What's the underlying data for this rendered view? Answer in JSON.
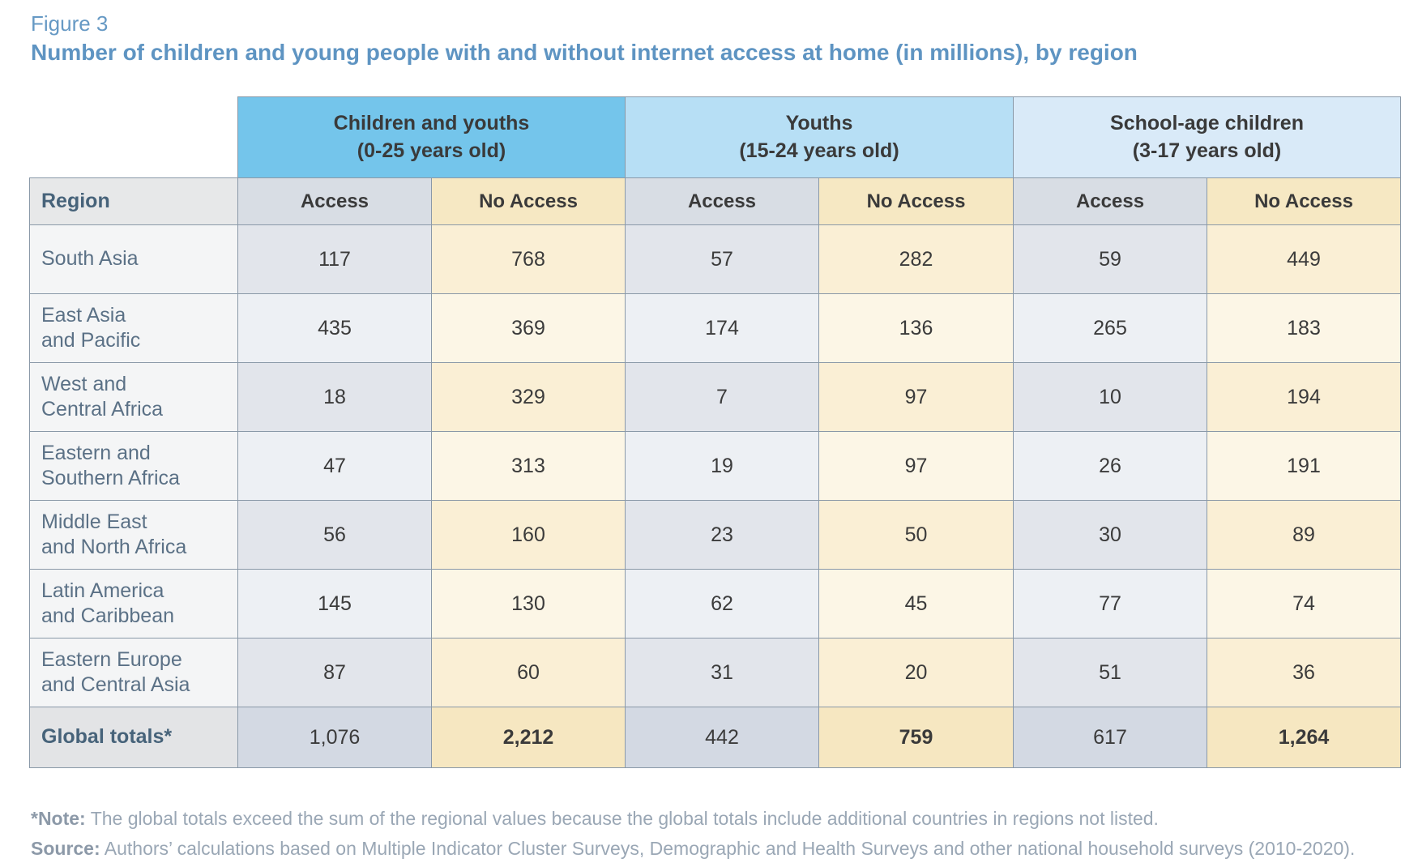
{
  "figure": {
    "label": "Figure 3",
    "title": "Number of children and young people with and without internet access at home (in millions), by region"
  },
  "colors": {
    "title_blue": "#5E94C2",
    "group_children_youths_bg": "#74C5EB",
    "group_youths_bg": "#B7DFF5",
    "group_school_age_bg": "#D9EAF8",
    "access_header_bg": "#D8DDE4",
    "no_access_header_bg": "#F6E8C3",
    "region_header_bg": "#E7E8E9",
    "access_cell_odd_bg": "#E2E5EB",
    "access_cell_even_bg": "#EDF0F4",
    "no_access_cell_odd_bg": "#FAEFD5",
    "no_access_cell_even_bg": "#FCF6E6",
    "totals_access_bg": "#D3D9E3",
    "totals_no_access_bg": "#F6E7C1",
    "region_text": "#5B7186",
    "footnote_text": "#9AA7B5",
    "grid_border": "#8A99A8"
  },
  "table": {
    "group_headers": [
      {
        "line1": "Children and youths",
        "line2": "(0-25 years old)"
      },
      {
        "line1": "Youths",
        "line2": "(15-24 years old)"
      },
      {
        "line1": "School-age children",
        "line2": "(3-17 years old)"
      }
    ],
    "region_header": "Region",
    "col_access": "Access",
    "col_no_access": "No Access",
    "rows": [
      {
        "region_lines": [
          "South Asia"
        ],
        "values": [
          "117",
          "768",
          "57",
          "282",
          "59",
          "449"
        ]
      },
      {
        "region_lines": [
          "East Asia",
          "and Pacific"
        ],
        "values": [
          "435",
          "369",
          "174",
          "136",
          "265",
          "183"
        ]
      },
      {
        "region_lines": [
          "West and",
          "Central Africa"
        ],
        "values": [
          "18",
          "329",
          "7",
          "97",
          "10",
          "194"
        ]
      },
      {
        "region_lines": [
          "Eastern and",
          "Southern Africa"
        ],
        "values": [
          "47",
          "313",
          "19",
          "97",
          "26",
          "191"
        ]
      },
      {
        "region_lines": [
          "Middle East",
          "and North Africa"
        ],
        "values": [
          "56",
          "160",
          "23",
          "50",
          "30",
          "89"
        ]
      },
      {
        "region_lines": [
          "Latin America",
          "and Caribbean"
        ],
        "values": [
          "145",
          "130",
          "62",
          "45",
          "77",
          "74"
        ]
      },
      {
        "region_lines": [
          "Eastern Europe",
          "and Central Asia"
        ],
        "values": [
          "87",
          "60",
          "31",
          "20",
          "51",
          "36"
        ]
      }
    ],
    "totals": {
      "label": "Global totals*",
      "values": [
        "1,076",
        "2,212",
        "442",
        "759",
        "617",
        "1,264"
      ]
    }
  },
  "notes": {
    "note_label": "*Note:",
    "note_text": "The global totals exceed the sum of the regional values because the global totals include additional countries in regions not listed.",
    "source_label": "Source:",
    "source_text": "Authors’ calculations based on Multiple Indicator Cluster Surveys, Demographic and Health Surveys and other national household surveys (2010-2020)."
  },
  "chart_data": {
    "type": "table",
    "title": "Number of children and young people with and without internet access at home (in millions), by region",
    "column_groups": [
      "Children and youths (0-25 years old)",
      "Youths (15-24 years old)",
      "School-age children (3-17 years old)"
    ],
    "columns": [
      "Region",
      "Children and youths (0-25) Access",
      "Children and youths (0-25) No Access",
      "Youths (15-24) Access",
      "Youths (15-24) No Access",
      "School-age children (3-17) Access",
      "School-age children (3-17) No Access"
    ],
    "rows": [
      [
        "South Asia",
        117,
        768,
        57,
        282,
        59,
        449
      ],
      [
        "East Asia and Pacific",
        435,
        369,
        174,
        136,
        265,
        183
      ],
      [
        "West and Central Africa",
        18,
        329,
        7,
        97,
        10,
        194
      ],
      [
        "Eastern and Southern Africa",
        47,
        313,
        19,
        97,
        26,
        191
      ],
      [
        "Middle East and North Africa",
        56,
        160,
        23,
        50,
        30,
        89
      ],
      [
        "Latin America and Caribbean",
        145,
        130,
        62,
        45,
        77,
        74
      ],
      [
        "Eastern Europe and Central Asia",
        87,
        60,
        31,
        20,
        51,
        36
      ],
      [
        "Global totals*",
        1076,
        2212,
        442,
        759,
        617,
        1264
      ]
    ],
    "units": "millions"
  }
}
